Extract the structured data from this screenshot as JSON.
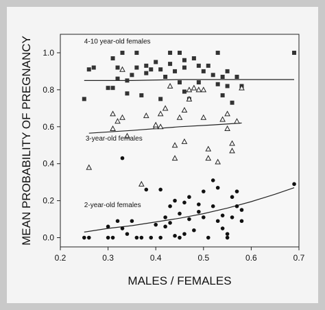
{
  "chart_data": {
    "type": "scatter",
    "xlabel": "MALES / FEMALES",
    "ylabel": "MEAN PROBABILITY OF PREGNANCY",
    "xlim": [
      0.2,
      0.7
    ],
    "ylim": [
      -0.05,
      1.1
    ],
    "xticks": [
      0.2,
      0.3,
      0.4,
      0.5,
      0.6,
      0.7
    ],
    "yticks": [
      0.0,
      0.2,
      0.4,
      0.6,
      0.8,
      1.0
    ],
    "xtick_labels": [
      "0.2",
      "0.3",
      "0.4",
      "0.5",
      "0.6",
      "0.7"
    ],
    "ytick_labels": [
      "0.0",
      "0.2",
      "0.4",
      "0.6",
      "0.8",
      "1.0"
    ],
    "grid": false,
    "legend": "none",
    "annotations": [
      {
        "text": "4-10 year-old females",
        "x": 0.25,
        "y": 1.05
      },
      {
        "text": "3-year-old females",
        "x": 0.253,
        "y": 0.525
      },
      {
        "text": "2-year-old females",
        "x": 0.25,
        "y": 0.165
      }
    ],
    "series": [
      {
        "marker": "square",
        "color": "#333333",
        "points": [
          [
            0.25,
            0.75
          ],
          [
            0.26,
            0.91
          ],
          [
            0.27,
            0.92
          ],
          [
            0.3,
            0.81
          ],
          [
            0.31,
            0.81
          ],
          [
            0.31,
            0.97
          ],
          [
            0.32,
            0.86
          ],
          [
            0.32,
            0.92
          ],
          [
            0.33,
            1.0
          ],
          [
            0.34,
            0.85
          ],
          [
            0.34,
            0.78
          ],
          [
            0.35,
            0.88
          ],
          [
            0.36,
            1.0
          ],
          [
            0.36,
            0.92
          ],
          [
            0.37,
            0.77
          ],
          [
            0.38,
            0.89
          ],
          [
            0.38,
            0.93
          ],
          [
            0.39,
            0.91
          ],
          [
            0.4,
            0.95
          ],
          [
            0.41,
            0.75
          ],
          [
            0.41,
            0.91
          ],
          [
            0.42,
            0.87
          ],
          [
            0.43,
            1.0
          ],
          [
            0.43,
            0.94
          ],
          [
            0.44,
            0.9
          ],
          [
            0.45,
            0.84
          ],
          [
            0.45,
            1.0
          ],
          [
            0.46,
            0.96
          ],
          [
            0.46,
            0.92
          ],
          [
            0.46,
            0.79
          ],
          [
            0.47,
            0.75
          ],
          [
            0.48,
            0.97
          ],
          [
            0.49,
            0.93
          ],
          [
            0.49,
            0.84
          ],
          [
            0.5,
            0.9
          ],
          [
            0.51,
            0.93
          ],
          [
            0.52,
            0.88
          ],
          [
            0.53,
            1.0
          ],
          [
            0.53,
            0.83
          ],
          [
            0.54,
            0.87
          ],
          [
            0.54,
            0.77
          ],
          [
            0.55,
            0.9
          ],
          [
            0.55,
            0.82
          ],
          [
            0.56,
            0.73
          ],
          [
            0.57,
            0.87
          ],
          [
            0.58,
            0.82
          ],
          [
            0.69,
            1.0
          ]
        ]
      },
      {
        "marker": "triangle-open",
        "color": "#222222",
        "points": [
          [
            0.26,
            0.38
          ],
          [
            0.31,
            0.59
          ],
          [
            0.31,
            0.67
          ],
          [
            0.32,
            0.63
          ],
          [
            0.33,
            0.91
          ],
          [
            0.33,
            0.65
          ],
          [
            0.34,
            0.55
          ],
          [
            0.37,
            0.29
          ],
          [
            0.38,
            0.66
          ],
          [
            0.4,
            0.6
          ],
          [
            0.4,
            0.61
          ],
          [
            0.41,
            0.6
          ],
          [
            0.41,
            0.67
          ],
          [
            0.42,
            0.7
          ],
          [
            0.43,
            0.82
          ],
          [
            0.44,
            0.43
          ],
          [
            0.44,
            0.5
          ],
          [
            0.45,
            0.65
          ],
          [
            0.46,
            0.52
          ],
          [
            0.46,
            0.69
          ],
          [
            0.47,
            0.75
          ],
          [
            0.47,
            0.8
          ],
          [
            0.48,
            0.81
          ],
          [
            0.49,
            0.8
          ],
          [
            0.5,
            0.8
          ],
          [
            0.5,
            0.65
          ],
          [
            0.51,
            0.43
          ],
          [
            0.51,
            0.48
          ],
          [
            0.53,
            0.41
          ],
          [
            0.54,
            0.64
          ],
          [
            0.55,
            0.67
          ],
          [
            0.55,
            0.59
          ],
          [
            0.56,
            0.51
          ],
          [
            0.56,
            0.47
          ],
          [
            0.57,
            0.63
          ],
          [
            0.58,
            0.81
          ]
        ]
      },
      {
        "marker": "circle",
        "color": "#111111",
        "points": [
          [
            0.25,
            0.0
          ],
          [
            0.26,
            0.0
          ],
          [
            0.3,
            0.0
          ],
          [
            0.3,
            0.06
          ],
          [
            0.31,
            0.0
          ],
          [
            0.32,
            0.09
          ],
          [
            0.33,
            0.43
          ],
          [
            0.33,
            0.05
          ],
          [
            0.34,
            0.02
          ],
          [
            0.35,
            0.09
          ],
          [
            0.36,
            0.0
          ],
          [
            0.37,
            0.0
          ],
          [
            0.38,
            0.26
          ],
          [
            0.39,
            0.0
          ],
          [
            0.4,
            0.07
          ],
          [
            0.41,
            0.0
          ],
          [
            0.41,
            0.26
          ],
          [
            0.42,
            0.06
          ],
          [
            0.42,
            0.11
          ],
          [
            0.43,
            0.17
          ],
          [
            0.43,
            0.08
          ],
          [
            0.44,
            0.2
          ],
          [
            0.44,
            0.01
          ],
          [
            0.45,
            0.13
          ],
          [
            0.45,
            0.0
          ],
          [
            0.46,
            0.19
          ],
          [
            0.46,
            0.02
          ],
          [
            0.47,
            0.1
          ],
          [
            0.47,
            0.22
          ],
          [
            0.48,
            0.04
          ],
          [
            0.49,
            0.18
          ],
          [
            0.49,
            0.14
          ],
          [
            0.5,
            0.25
          ],
          [
            0.5,
            0.11
          ],
          [
            0.51,
            0.0
          ],
          [
            0.52,
            0.31
          ],
          [
            0.52,
            0.17
          ],
          [
            0.53,
            0.27
          ],
          [
            0.53,
            0.09
          ],
          [
            0.54,
            0.12
          ],
          [
            0.54,
            0.05
          ],
          [
            0.55,
            0.0
          ],
          [
            0.55,
            0.02
          ],
          [
            0.56,
            0.22
          ],
          [
            0.56,
            0.11
          ],
          [
            0.57,
            0.25
          ],
          [
            0.57,
            0.17
          ],
          [
            0.58,
            0.15
          ],
          [
            0.58,
            0.09
          ],
          [
            0.69,
            0.29
          ]
        ]
      }
    ],
    "fit_lines": [
      {
        "color": "#222222",
        "points": [
          [
            0.25,
            0.85
          ],
          [
            0.35,
            0.85
          ],
          [
            0.45,
            0.855
          ],
          [
            0.55,
            0.855
          ],
          [
            0.69,
            0.855
          ]
        ]
      },
      {
        "color": "#222222",
        "points": [
          [
            0.26,
            0.565
          ],
          [
            0.35,
            0.58
          ],
          [
            0.45,
            0.6
          ],
          [
            0.52,
            0.61
          ],
          [
            0.58,
            0.62
          ]
        ]
      },
      {
        "color": "#222222",
        "points": [
          [
            0.25,
            0.03
          ],
          [
            0.3,
            0.05
          ],
          [
            0.35,
            0.065
          ],
          [
            0.4,
            0.085
          ],
          [
            0.45,
            0.105
          ],
          [
            0.5,
            0.13
          ],
          [
            0.55,
            0.16
          ],
          [
            0.6,
            0.195
          ],
          [
            0.65,
            0.235
          ],
          [
            0.69,
            0.27
          ]
        ]
      }
    ]
  }
}
